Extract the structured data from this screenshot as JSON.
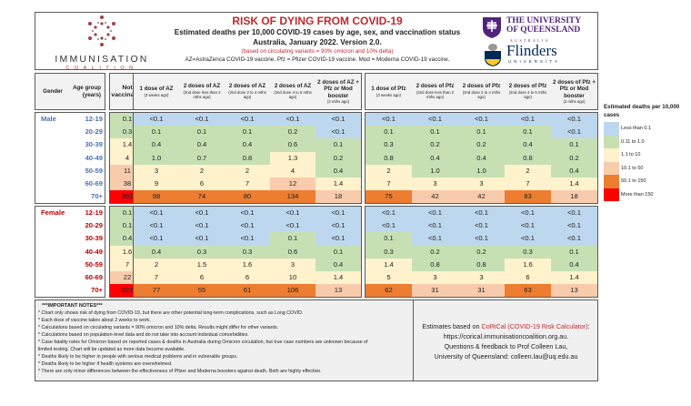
{
  "header": {
    "logo_name": "IMMUNISATION",
    "logo_sub": "COALITION",
    "title": "RISK OF DYING FROM COVID-19",
    "subtitle": "Estimated deaths per 10,000 COVID-19 cases by age, sex, and vaccination status",
    "subtitle2": "Australia, January 2022.  Version 2.0.",
    "variants_note": "(based on circulating variants = 90% omicron and 10% delta)",
    "abbrev_note": "AZ=AstraZenca COVID-19 vaccine.  Pfz = Pfizer COVID-19 vaccine. Mod = Moderna COVID-19 vaccine.",
    "uq_line1": "THE UNIVERSITY",
    "uq_line2": "OF QUEENSLAND",
    "uq_line3": "AUSTRALIA",
    "flinders_line1": "Flinders",
    "flinders_line2": "UNIVERSITY"
  },
  "columns": {
    "gender": "Gender",
    "age": "Age group (years)",
    "not_vaccinated": "Not vaccinated",
    "az": [
      {
        "title": "1 dose of AZ",
        "sub": "(3 weeks ago)"
      },
      {
        "title": "2 doses of AZ",
        "sub": "(2nd dose less than 2 mths ago)"
      },
      {
        "title": "2 doses of AZ",
        "sub": "(2nd dose 2 to 4 mths ago)"
      },
      {
        "title": "2 doses of AZ",
        "sub": "(2nd dose 4 to 6 mths ago)"
      },
      {
        "title": "2 doses of AZ + Pfz or Mod booster",
        "sub": "(2 mths ago)"
      }
    ],
    "pfz": [
      {
        "title": "1 dose of Pfz",
        "sub": "(3 weeks ago)"
      },
      {
        "title": "2 doses of Pfz",
        "sub": "(2nd dose less than 2 mths ago)"
      },
      {
        "title": "2 doses of Pfz",
        "sub": "(2nd dose 2 to 4 mths ago)"
      },
      {
        "title": "2 doses of Pfz",
        "sub": "(2nd dose 4 to 6 mths ago)"
      },
      {
        "title": "2 doses of Pfz + Pfz or Mod booster",
        "sub": "(2 mths ago)"
      }
    ]
  },
  "legend": {
    "title": "Estimated deaths per 10,000 cases",
    "items": [
      {
        "label": "Less than 0.1",
        "color": "#bdd7ee"
      },
      {
        "label": "0.11 to 1.0",
        "color": "#c6e0b4"
      },
      {
        "label": "1.1 to 10",
        "color": "#fff2cc"
      },
      {
        "label": "10.1 to 50",
        "color": "#f8cbad"
      },
      {
        "label": "50.1 to 150",
        "color": "#ed7d31"
      },
      {
        "label": "More than 150",
        "color": "#ff0000"
      }
    ]
  },
  "groups": [
    {
      "gender": "Male",
      "rows": [
        {
          "age": "12-19",
          "nv": "0.1",
          "az": [
            "<0.1",
            "<0.1",
            "<0.1",
            "<0.1",
            "<0.1"
          ],
          "pfz": [
            "<0.1",
            "<0.1",
            "<0.1",
            "<0.1",
            "<0.1"
          ]
        },
        {
          "age": "20-29",
          "nv": "0.3",
          "az": [
            "0.1",
            "0.1",
            "0.1",
            "0.2",
            "<0.1"
          ],
          "pfz": [
            "0.1",
            "0.1",
            "0.1",
            "0.1",
            "<0.1"
          ]
        },
        {
          "age": "30-39",
          "nv": "1.4",
          "az": [
            "0.4",
            "0.4",
            "0.4",
            "0.6",
            "0.1"
          ],
          "pfz": [
            "0.3",
            "0.2",
            "0.2",
            "0.4",
            "0.1"
          ]
        },
        {
          "age": "40-49",
          "nv": "4",
          "az": [
            "1.0",
            "0.7",
            "0.8",
            "1.3",
            "0.2"
          ],
          "pfz": [
            "0.8",
            "0.4",
            "0.4",
            "0.8",
            "0.2"
          ]
        },
        {
          "age": "50-59",
          "nv": "11",
          "az": [
            "3",
            "2",
            "2",
            "4",
            "0.4"
          ],
          "pfz": [
            "2",
            "1.0",
            "1.0",
            "2",
            "0.4"
          ]
        },
        {
          "age": "60-69",
          "nv": "38",
          "az": [
            "9",
            "6",
            "7",
            "12",
            "1.4"
          ],
          "pfz": [
            "7",
            "3",
            "3",
            "7",
            "1.4"
          ]
        },
        {
          "age": "70+",
          "nv": "362",
          "az": [
            "98",
            "74",
            "80",
            "134",
            "18"
          ],
          "pfz": [
            "75",
            "42",
            "42",
            "83",
            "18"
          ]
        }
      ]
    },
    {
      "gender": "Female",
      "rows": [
        {
          "age": "12-19",
          "nv": "0.1",
          "az": [
            "<0.1",
            "<0.1",
            "<0.1",
            "<0.1",
            "<0.1"
          ],
          "pfz": [
            "<0.1",
            "<0.1",
            "<0.1",
            "<0.1",
            "<0.1"
          ]
        },
        {
          "age": "20-29",
          "nv": "0.1",
          "az": [
            "<0.1",
            "<0.1",
            "<0.1",
            "<0.1",
            "<0.1"
          ],
          "pfz": [
            "<0.1",
            "<0.1",
            "<0.1",
            "<0.1",
            "<0.1"
          ]
        },
        {
          "age": "30-39",
          "nv": "0.4",
          "az": [
            "<0.1",
            "<0.1",
            "<0.1",
            "0.1",
            "<0.1"
          ],
          "pfz": [
            "0.1",
            "<0.1",
            "<0.1",
            "<0.1",
            "<0.1"
          ]
        },
        {
          "age": "40-49",
          "nv": "1.6",
          "az": [
            "0.4",
            "0.3",
            "0.3",
            "0.6",
            "0.1"
          ],
          "pfz": [
            "0.3",
            "0.2",
            "0.2",
            "0.3",
            "0.1"
          ]
        },
        {
          "age": "50-59",
          "nv": "7",
          "az": [
            "2",
            "1.5",
            "1.6",
            "3",
            "0.4"
          ],
          "pfz": [
            "1.4",
            "0.8",
            "0.8",
            "1.6",
            "0.4"
          ]
        },
        {
          "age": "60-69",
          "nv": "22",
          "az": [
            "7",
            "6",
            "6",
            "10",
            "1.4"
          ],
          "pfz": [
            "5",
            "3",
            "3",
            "6",
            "1.4"
          ]
        },
        {
          "age": "70+",
          "nv": "322",
          "az": [
            "77",
            "55",
            "61",
            "106",
            "13"
          ],
          "pfz": [
            "62",
            "31",
            "31",
            "63",
            "13"
          ]
        }
      ]
    }
  ],
  "notes": {
    "title": "***IMPORTANT NOTES***",
    "items": [
      "* Chart only shows risk of dying from COVID-19, but there are other potential long-term complications, such as Long COVID.",
      "* Each dose of vaccine takes about 2 weeks to work.",
      "* Calculations based on circulating variants = 90% omicron and 10% delta. Results might differ for other variants.",
      "* Calculations based on population-level data and do not take into account individual comorbidities.",
      "* Case fatality rates for Omicron based on reported cases & deaths in Australia during Omicron circulation, but true case numbers are unknown because of",
      "limited testing.  Chart will be updated as more data become available.",
      "* Deaths likely to be higher in people with serious medical problems and in vulnerable groups.",
      "* Deaths likely to be higher if health systems are overwhelmed.",
      "* There are only minor differences between the effectiveness of Pfizer and Moderna boosters against death. Both are highly effective."
    ]
  },
  "source": {
    "prefix": "Estimates based on ",
    "tool": "CoRiCal (COVID-19 Risk Calculator)",
    "suffix": ":",
    "url": "https://corical.immunisationcoalition.org.au.",
    "line3": "Questions & feedback to Prof Colleen Lau,",
    "line4": "University of Queensland: colleen.lau@uq.edu.au"
  }
}
